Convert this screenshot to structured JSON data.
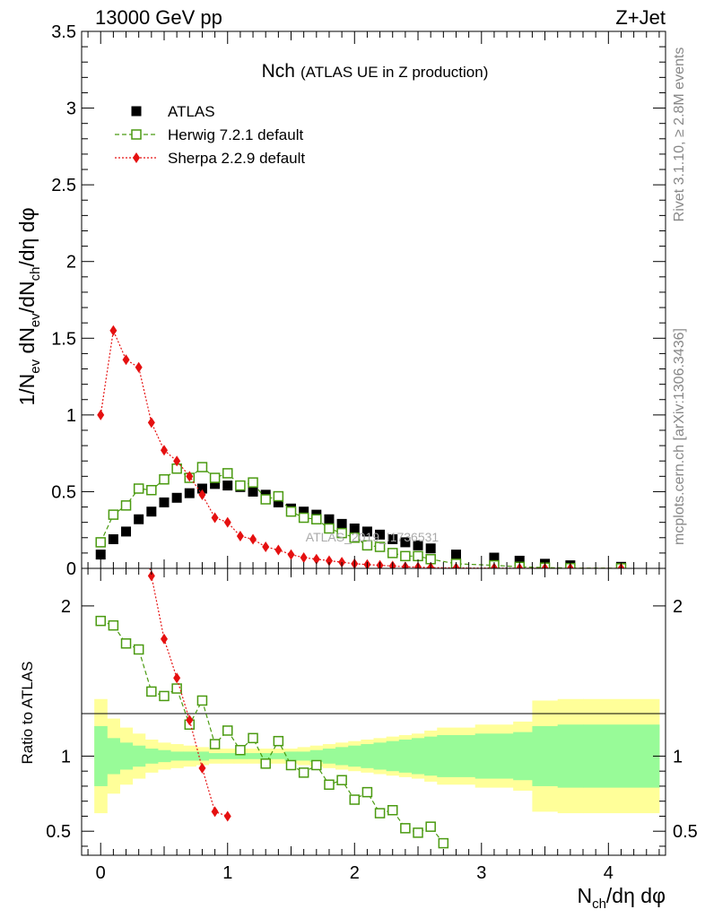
{
  "header": {
    "left": "13000 GeV pp",
    "right": "Z+Jet"
  },
  "side_texts": {
    "rivet": "Rivet 3.1.10, ≥ 2.8M events",
    "mcplots": "mcplots.cern.ch [arXiv:1306.3436]"
  },
  "chart_data": [
    {
      "type": "scatter",
      "title": "Nch",
      "subtitle": "(ATLAS UE in Z production)",
      "watermark": "ATLAS_2019_I1736531",
      "ylabel": "1/N_ev dN_ev/dN_ch/dη dφ",
      "xlim": [
        -0.15,
        4.45
      ],
      "ylim": [
        0,
        3.5
      ],
      "y_ticks": [
        0,
        0.5,
        1,
        1.5,
        2,
        2.5,
        3,
        3.5
      ],
      "y_tick_labels": [
        "0",
        "0.5",
        "1",
        "1.5",
        "2",
        "2.5",
        "3",
        "3.5"
      ],
      "legend_position": "top-left",
      "series": [
        {
          "name": "ATLAS",
          "color": "#000000",
          "marker": "filled-square",
          "x": [
            0.0,
            0.1,
            0.2,
            0.3,
            0.4,
            0.5,
            0.6,
            0.7,
            0.8,
            0.9,
            1.0,
            1.1,
            1.2,
            1.3,
            1.4,
            1.5,
            1.6,
            1.7,
            1.8,
            1.9,
            2.0,
            2.1,
            2.2,
            2.3,
            2.4,
            2.5,
            2.6,
            2.8,
            3.1,
            3.3,
            3.5,
            3.7,
            4.1
          ],
          "y": [
            0.09,
            0.19,
            0.24,
            0.32,
            0.37,
            0.43,
            0.46,
            0.49,
            0.52,
            0.55,
            0.54,
            0.53,
            0.5,
            0.48,
            0.43,
            0.39,
            0.37,
            0.35,
            0.32,
            0.29,
            0.26,
            0.24,
            0.22,
            0.19,
            0.17,
            0.15,
            0.13,
            0.09,
            0.07,
            0.05,
            0.03,
            0.02,
            0.01
          ]
        },
        {
          "name": "Herwig 7.2.1 default",
          "color": "#4a9a10",
          "marker": "open-square",
          "line": "dashed",
          "x": [
            0.0,
            0.1,
            0.2,
            0.3,
            0.4,
            0.5,
            0.6,
            0.7,
            0.8,
            0.9,
            1.0,
            1.1,
            1.2,
            1.3,
            1.4,
            1.5,
            1.6,
            1.7,
            1.8,
            1.9,
            2.0,
            2.1,
            2.2,
            2.3,
            2.4,
            2.5,
            2.6,
            2.8,
            3.1,
            3.3,
            3.5,
            3.7,
            4.1
          ],
          "y": [
            0.17,
            0.35,
            0.41,
            0.52,
            0.51,
            0.58,
            0.65,
            0.59,
            0.66,
            0.59,
            0.62,
            0.54,
            0.56,
            0.45,
            0.47,
            0.37,
            0.33,
            0.32,
            0.26,
            0.23,
            0.2,
            0.15,
            0.14,
            0.1,
            0.08,
            0.08,
            0.06,
            0.03,
            0.02,
            0.01,
            0.005,
            0.002,
            0.001
          ]
        },
        {
          "name": "Sherpa 2.2.9 default",
          "color": "#e51010",
          "marker": "filled-diamond",
          "line": "dotted",
          "x": [
            0.0,
            0.1,
            0.2,
            0.3,
            0.4,
            0.5,
            0.6,
            0.7,
            0.8,
            0.9,
            1.0,
            1.1,
            1.2,
            1.3,
            1.4,
            1.5,
            1.6,
            1.7,
            1.8,
            1.9,
            2.0,
            2.1,
            2.2,
            2.3,
            2.4,
            2.5,
            2.6,
            2.8,
            3.1,
            3.3,
            3.5,
            3.7,
            4.1
          ],
          "y": [
            1.0,
            1.55,
            1.36,
            1.31,
            0.95,
            0.77,
            0.7,
            0.6,
            0.48,
            0.33,
            0.3,
            0.21,
            0.19,
            0.14,
            0.12,
            0.09,
            0.07,
            0.06,
            0.05,
            0.04,
            0.03,
            0.025,
            0.02,
            0.015,
            0.01,
            0.008,
            0.005,
            0.003,
            0.002,
            0.001,
            0.0005,
            0.0003,
            0.0001
          ]
        }
      ]
    },
    {
      "type": "line",
      "ylabel": "Ratio to ATLAS",
      "xlabel": "N_ch/dη dφ",
      "xlim": [
        -0.15,
        4.45
      ],
      "ylim": [
        0.34,
        2.25
      ],
      "x_ticks": [
        0,
        1,
        2,
        3,
        4
      ],
      "x_tick_labels": [
        "0",
        "1",
        "2",
        "3",
        "4"
      ],
      "y_ticks": [
        0.5,
        1,
        2
      ],
      "y_tick_labels": [
        "0.5",
        "1",
        "2"
      ],
      "bands": {
        "bins": [
          -0.05,
          0.05,
          0.15,
          0.25,
          0.35,
          0.45,
          0.55,
          0.65,
          0.75,
          0.85,
          0.95,
          1.05,
          1.15,
          1.25,
          1.35,
          1.45,
          1.55,
          1.65,
          1.75,
          1.85,
          1.95,
          2.05,
          2.15,
          2.25,
          2.35,
          2.45,
          2.55,
          2.65,
          2.95,
          3.25,
          3.4,
          3.6,
          3.8,
          4.4
        ],
        "outer_color": "#ffff99",
        "inner_color": "#98fb98",
        "outer": [
          0.38,
          0.25,
          0.19,
          0.15,
          0.11,
          0.09,
          0.08,
          0.07,
          0.06,
          0.05,
          0.05,
          0.05,
          0.05,
          0.05,
          0.05,
          0.05,
          0.06,
          0.07,
          0.08,
          0.09,
          0.1,
          0.11,
          0.12,
          0.13,
          0.14,
          0.15,
          0.17,
          0.19,
          0.21,
          0.23,
          0.37,
          0.38,
          0.38
        ],
        "inner": [
          0.2,
          0.12,
          0.09,
          0.07,
          0.05,
          0.04,
          0.03,
          0.03,
          0.03,
          0.02,
          0.02,
          0.02,
          0.02,
          0.02,
          0.02,
          0.03,
          0.03,
          0.04,
          0.05,
          0.06,
          0.07,
          0.08,
          0.09,
          0.1,
          0.11,
          0.12,
          0.13,
          0.14,
          0.15,
          0.16,
          0.2,
          0.21,
          0.21
        ]
      },
      "series": [
        {
          "name": "Herwig 7.2.1 default",
          "color": "#4a9a10",
          "marker": "open-square",
          "line": "dashed",
          "x": [
            0.0,
            0.1,
            0.2,
            0.3,
            0.4,
            0.5,
            0.6,
            0.7,
            0.8,
            0.9,
            1.0,
            1.1,
            1.2,
            1.3,
            1.4,
            1.5,
            1.6,
            1.7,
            1.8,
            1.9,
            2.0,
            2.1,
            2.2,
            2.3,
            2.4,
            2.5,
            2.6,
            2.7
          ],
          "y": [
            1.9,
            1.87,
            1.75,
            1.71,
            1.43,
            1.4,
            1.45,
            1.21,
            1.37,
            1.08,
            1.17,
            1.04,
            1.12,
            0.95,
            1.1,
            0.94,
            0.89,
            0.94,
            0.81,
            0.84,
            0.71,
            0.76,
            0.62,
            0.64,
            0.52,
            0.49,
            0.53,
            0.42
          ]
        },
        {
          "name": "Sherpa 2.2.9 default",
          "color": "#e51010",
          "marker": "filled-diamond",
          "line": "dotted",
          "x": [
            0.3,
            0.4,
            0.5,
            0.6,
            0.7,
            0.8,
            0.9,
            1.0
          ],
          "y": [
            2.6,
            2.2,
            1.78,
            1.52,
            1.24,
            0.92,
            0.63,
            0.6
          ]
        }
      ]
    }
  ]
}
